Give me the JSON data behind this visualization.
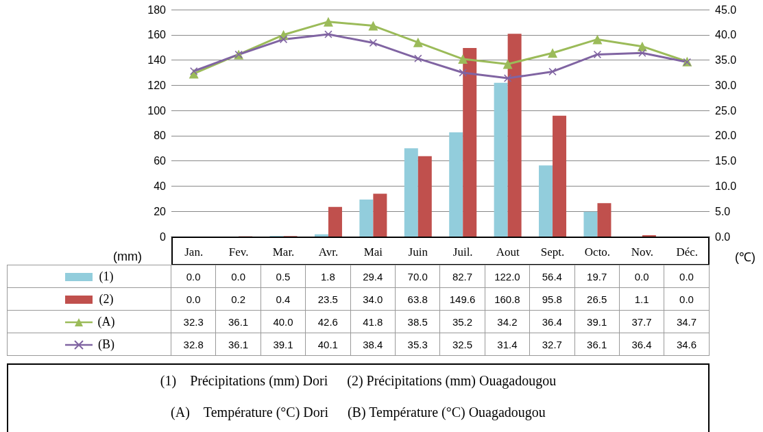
{
  "chart_data": {
    "type": "bar",
    "categories": [
      "Jan.",
      "Fev.",
      "Mar.",
      "Avr.",
      "Mai",
      "Juin",
      "Juil.",
      "Aout",
      "Sept.",
      "Octo.",
      "Nov.",
      "Déc."
    ],
    "ylabel": "(mm)",
    "y2label": "(℃)",
    "ylim": [
      0,
      180
    ],
    "yticks": [
      0,
      20,
      40,
      60,
      80,
      100,
      120,
      140,
      160,
      180
    ],
    "y2lim": [
      0,
      45
    ],
    "y2ticks": [
      {
        "value": 0,
        "label": "0.0"
      },
      {
        "value": 5,
        "label": "5.0"
      },
      {
        "value": 10,
        "label": "10.0"
      },
      {
        "value": 15,
        "label": "15.0"
      },
      {
        "value": 20,
        "label": "20.0"
      },
      {
        "value": 25,
        "label": "25.0"
      },
      {
        "value": 30,
        "label": "30.0"
      },
      {
        "value": 35,
        "label": "35.0"
      },
      {
        "value": 40,
        "label": "40.0"
      },
      {
        "value": 45,
        "label": "45.0"
      }
    ],
    "grid": "y",
    "legend": "bottom",
    "series": [
      {
        "name": "(1)",
        "color": "#92cddc",
        "values": [
          0.0,
          0.0,
          0.5,
          1.8,
          29.4,
          70.0,
          82.7,
          122.0,
          56.4,
          19.7,
          0.0,
          0.0
        ],
        "value_labels": [
          "0.0",
          "0.0",
          "0.5",
          "1.8",
          "29.4",
          "70.0",
          "82.7",
          "122.0",
          "56.4",
          "19.7",
          "0.0",
          "0.0"
        ]
      },
      {
        "name": "(2)",
        "color": "#c0504d",
        "values": [
          0.0,
          0.2,
          0.4,
          23.5,
          34.0,
          63.8,
          149.6,
          160.8,
          95.8,
          26.5,
          1.1,
          0.0
        ],
        "value_labels": [
          "0.0",
          "0.2",
          "0.4",
          "23.5",
          "34.0",
          "63.8",
          "149.6",
          "160.8",
          "95.8",
          "26.5",
          "1.1",
          "0.0"
        ]
      },
      {
        "name": "(A)",
        "type": "line",
        "axis": "y2",
        "marker": "triangle",
        "color": "#9bbb59",
        "values": [
          32.3,
          36.1,
          40.0,
          42.6,
          41.8,
          38.5,
          35.2,
          34.2,
          36.4,
          39.1,
          37.7,
          34.7
        ],
        "value_labels": [
          "32.3",
          "36.1",
          "40.0",
          "42.6",
          "41.8",
          "38.5",
          "35.2",
          "34.2",
          "36.4",
          "39.1",
          "37.7",
          "34.7"
        ]
      },
      {
        "name": "(B)",
        "type": "line",
        "axis": "y2",
        "marker": "cross",
        "color": "#8064a2",
        "values": [
          32.8,
          36.1,
          39.1,
          40.1,
          38.4,
          35.3,
          32.5,
          31.4,
          32.7,
          36.1,
          36.4,
          34.6
        ],
        "value_labels": [
          "32.8",
          "36.1",
          "39.1",
          "40.1",
          "38.4",
          "35.3",
          "32.5",
          "31.4",
          "32.7",
          "36.1",
          "36.4",
          "34.6"
        ]
      }
    ],
    "annotations": [
      "(1)　Précipitations (mm) Dori",
      "(2) Précipitations (mm) Ouagadougou",
      "(A)　Température (°C) Dori",
      "(B) Température (°C) Ouagadougou"
    ]
  }
}
